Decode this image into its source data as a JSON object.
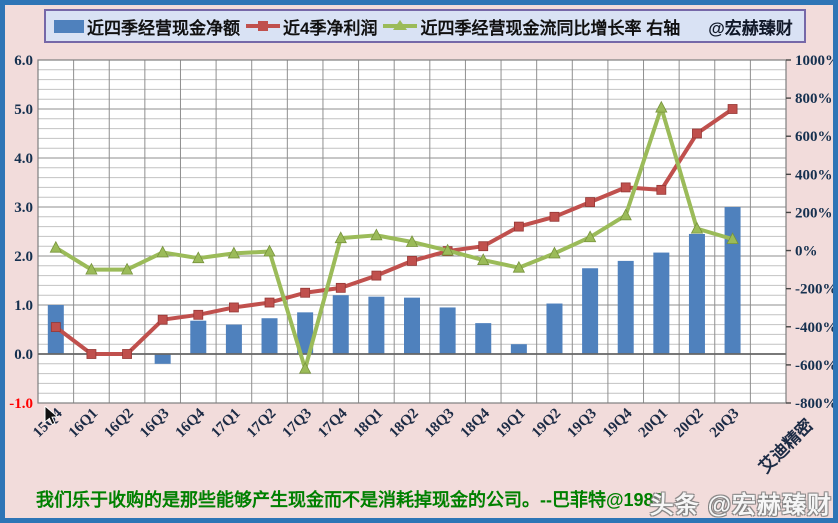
{
  "page": {
    "background": "#F2DCDB",
    "border_color": "#2E75B6"
  },
  "legend": {
    "items": [
      {
        "label": "近四季经营现金净额",
        "marker": "bar",
        "color": "#4F81BD"
      },
      {
        "label": "近4季净利润",
        "marker": "line-square",
        "color": "#C0504D"
      },
      {
        "label": "近四季经营现金流同比增长率 右轴",
        "marker": "line-triangle",
        "color": "#9BBB59"
      }
    ],
    "watermark": "@宏赫臻财"
  },
  "chart_data": {
    "type": "combo",
    "categories": [
      "15Q4",
      "16Q1",
      "16Q2",
      "16Q3",
      "16Q4",
      "17Q1",
      "17Q2",
      "17Q3",
      "17Q4",
      "18Q1",
      "18Q2",
      "18Q3",
      "18Q4",
      "19Q1",
      "19Q2",
      "19Q3",
      "19Q4",
      "20Q1",
      "20Q2",
      "20Q3"
    ],
    "extra_category_label": "艾迪精密",
    "series": [
      {
        "name": "近四季经营现金净额",
        "type": "bar",
        "axis": "left",
        "color": "#4F81BD",
        "values": [
          1.0,
          0,
          0,
          -0.2,
          0.68,
          0.6,
          0.73,
          0.85,
          1.2,
          1.17,
          1.15,
          0.95,
          0.63,
          0.2,
          1.03,
          1.75,
          1.9,
          2.07,
          2.45,
          3.0
        ]
      },
      {
        "name": "近4季净利润",
        "type": "line",
        "marker": "square",
        "axis": "left",
        "color": "#C0504D",
        "values": [
          0.55,
          0.0,
          0.0,
          0.7,
          0.8,
          0.95,
          1.05,
          1.25,
          1.35,
          1.6,
          1.9,
          2.1,
          2.2,
          2.6,
          2.8,
          3.1,
          3.4,
          3.35,
          4.5,
          5.0
        ]
      },
      {
        "name": "近四季经营现金流同比增长率",
        "type": "line",
        "marker": "triangle",
        "axis": "right",
        "color": "#9BBB59",
        "values_pct": [
          15,
          -100,
          -100,
          -10,
          -40,
          -15,
          -5,
          -620,
          65,
          80,
          45,
          0,
          -50,
          -90,
          -15,
          70,
          185,
          750,
          115,
          60
        ]
      }
    ],
    "left_axis": {
      "min": -1.0,
      "max": 6.0,
      "major_step": 1.0,
      "minor_step": 0.2,
      "tick_labels": [
        "6.0",
        "5.0",
        "4.0",
        "3.0",
        "2.0",
        "1.0",
        "0.0",
        "-1.0"
      ],
      "label_color": "#15304F",
      "negative_label_color": "#FF0000"
    },
    "right_axis": {
      "min": -800,
      "max": 1000,
      "major_step": 200,
      "tick_labels": [
        "1000%",
        "800%",
        "600%",
        "400%",
        "200%",
        "0%",
        "-200%",
        "-400%",
        "-600%",
        "-800%"
      ],
      "label_color": "#15304F"
    },
    "grid": true,
    "legend_position": "top"
  },
  "footer": {
    "quote": "我们乐于收购的是那些能够产生现金而不是消耗掉现金的公司。--巴菲特@1980",
    "watermark_prefix": "头条",
    "watermark_handle": "@宏赫臻财"
  }
}
